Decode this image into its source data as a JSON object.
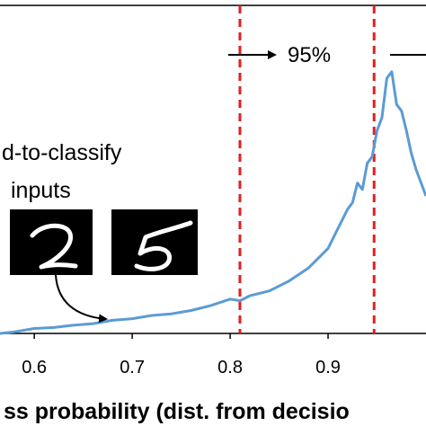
{
  "chart_data": {
    "type": "line",
    "xlabel": "ss probability (dist. from decisio",
    "x_ticks": [
      "0.6",
      "0.7",
      "0.8",
      "0.9"
    ],
    "xlim": [
      0.565,
      1.0
    ],
    "ylim": [
      0,
      1
    ],
    "grid": false,
    "series": [
      {
        "color": "#5b9bd5",
        "x": [
          0.565,
          0.58,
          0.6,
          0.62,
          0.64,
          0.66,
          0.68,
          0.7,
          0.72,
          0.74,
          0.76,
          0.78,
          0.8,
          0.81,
          0.82,
          0.84,
          0.86,
          0.87,
          0.88,
          0.89,
          0.9,
          0.91,
          0.92,
          0.925,
          0.93,
          0.935,
          0.94,
          0.945,
          0.95,
          0.955,
          0.96,
          0.965,
          0.97,
          0.975,
          0.98,
          0.985,
          0.99,
          1.0
        ],
        "y": [
          0.0,
          0.005,
          0.015,
          0.018,
          0.025,
          0.03,
          0.04,
          0.045,
          0.055,
          0.06,
          0.07,
          0.085,
          0.105,
          0.1,
          0.115,
          0.13,
          0.16,
          0.18,
          0.2,
          0.23,
          0.26,
          0.32,
          0.38,
          0.4,
          0.46,
          0.44,
          0.52,
          0.54,
          0.62,
          0.66,
          0.78,
          0.8,
          0.7,
          0.68,
          0.62,
          0.55,
          0.5,
          0.42
        ]
      }
    ],
    "reference_lines": [
      {
        "x": 0.81,
        "color": "#e02020",
        "style": "dashed"
      },
      {
        "x": 0.947,
        "color": "#e02020",
        "style": "dashed"
      }
    ],
    "annotations": {
      "percent_label": "95%",
      "hard_inputs_line1": "d-to-classify",
      "hard_inputs_line2": "inputs"
    }
  }
}
